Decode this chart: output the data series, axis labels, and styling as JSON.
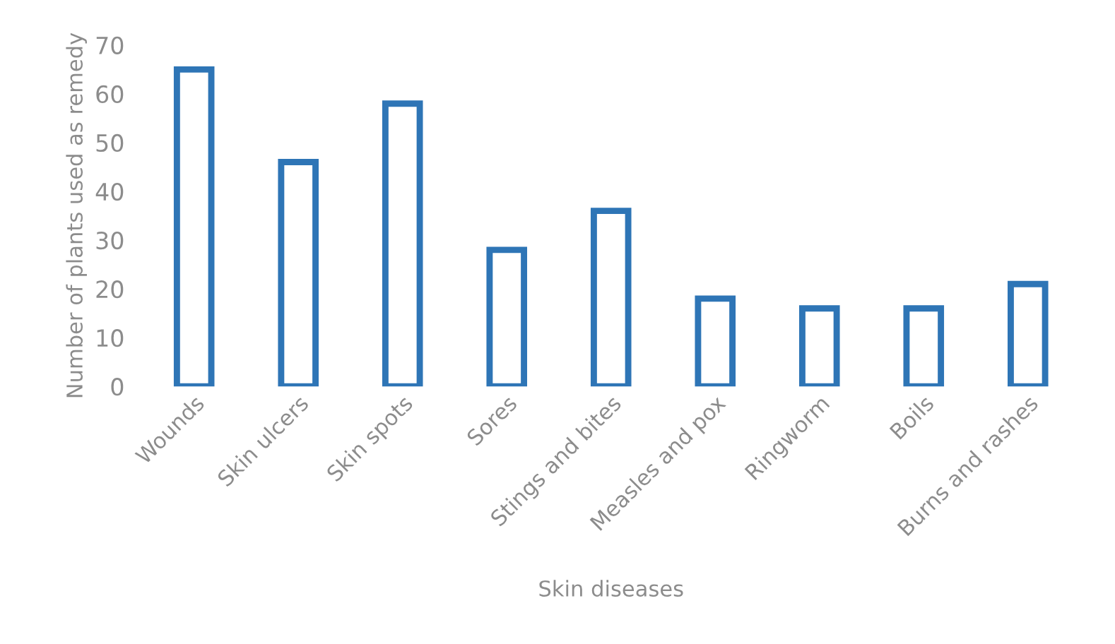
{
  "chart_data": {
    "type": "bar",
    "xlabel": "Skin diseases",
    "ylabel": "Number of plants used as remedy",
    "categories": [
      "Wounds",
      "Skin ulcers",
      "Skin spots",
      "Sores",
      "Stings and bites",
      "Measles and pox",
      "Ringworm",
      "Boils",
      "Burns and rashes"
    ],
    "values": [
      65,
      46,
      58,
      28,
      36,
      18,
      16,
      16,
      21
    ],
    "color": "#2e75b6",
    "ylim": [
      0,
      70
    ],
    "yticks": [
      0,
      10,
      20,
      30,
      40,
      50,
      60,
      70
    ],
    "grid": false
  }
}
